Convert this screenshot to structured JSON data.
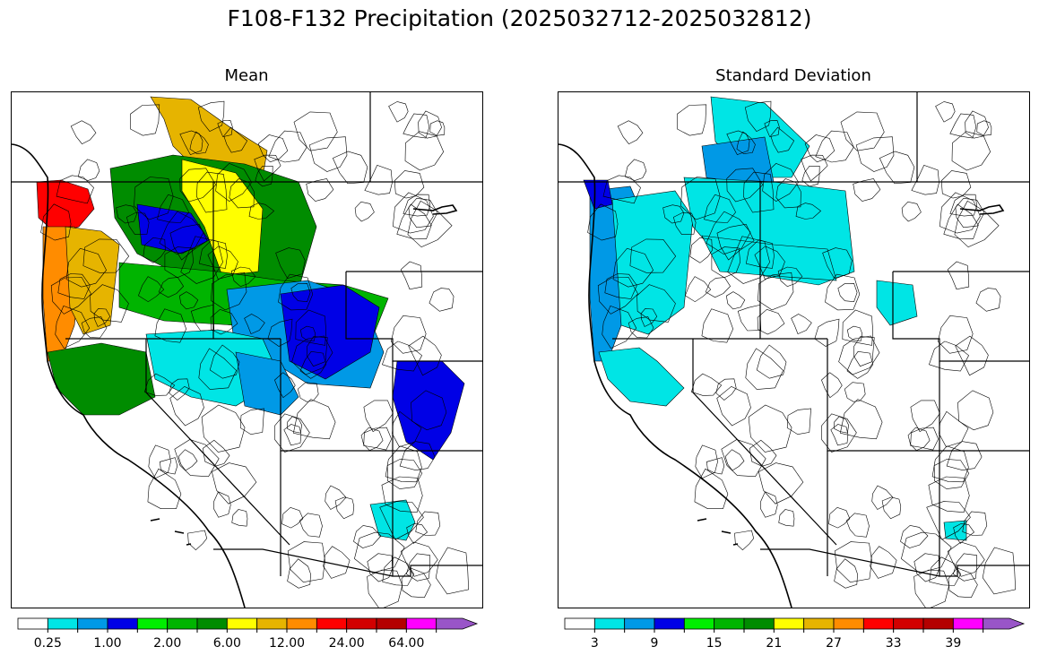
{
  "title": "F108-F132 Precipitation (2025032712-2025032812)",
  "panels": [
    {
      "title": "Mean",
      "colorbar": {
        "colors": [
          "#ffffff",
          "#00e5e5",
          "#0099e6",
          "#0000e6",
          "#00ee00",
          "#00b400",
          "#008c00",
          "#ffff00",
          "#e6b400",
          "#ff8c00",
          "#ff0000",
          "#d20000",
          "#b40000",
          "#ff00ff",
          "#9955c8"
        ],
        "extend": "max",
        "tick_labels": [
          "0.25",
          "1.00",
          "2.00",
          "6.00",
          "12.00",
          "24.00",
          "64.00"
        ],
        "tick_bins": [
          1,
          3,
          5,
          7,
          9,
          11,
          13
        ]
      },
      "regions": [
        {
          "name": "puget-olympic",
          "color": "#ff0000"
        },
        {
          "name": "oregon-coast",
          "color": "#ff8c00"
        },
        {
          "name": "willamette",
          "color": "#e6b400"
        },
        {
          "name": "bc-interior",
          "color": "#e6b400"
        },
        {
          "name": "columbia-north",
          "color": "#008c00"
        },
        {
          "name": "idaho-panhandle",
          "color": "#ffff00"
        },
        {
          "name": "snake-plain",
          "color": "#00b400"
        },
        {
          "name": "central-idaho",
          "color": "#0000e6"
        },
        {
          "name": "wyoming",
          "color": "#0099e6"
        },
        {
          "name": "northern-ca",
          "color": "#008c00"
        },
        {
          "name": "great-basin-north",
          "color": "#00e5e5"
        },
        {
          "name": "colorado-basins",
          "color": "#0000e6"
        },
        {
          "name": "utah-north",
          "color": "#0099e6"
        },
        {
          "name": "new-mexico-east",
          "color": "#0000e6"
        },
        {
          "name": "arizona-east",
          "color": "#00e5e5"
        }
      ]
    },
    {
      "title": "Standard Deviation",
      "colorbar": {
        "colors": [
          "#ffffff",
          "#00e5e5",
          "#0099e6",
          "#0000e6",
          "#00ee00",
          "#00b400",
          "#008c00",
          "#ffff00",
          "#e6b400",
          "#ff8c00",
          "#ff0000",
          "#d20000",
          "#b40000",
          "#ff00ff",
          "#9955c8"
        ],
        "extend": "max",
        "tick_labels": [
          "3",
          "9",
          "15",
          "21",
          "27",
          "33",
          "39"
        ],
        "tick_bins": [
          1,
          3,
          5,
          7,
          9,
          11,
          13
        ]
      },
      "regions": [
        {
          "name": "pacific-nw-coast",
          "color": "#0099e6"
        },
        {
          "name": "olympic-core",
          "color": "#0000e6"
        },
        {
          "name": "cascades",
          "color": "#00e5e5"
        },
        {
          "name": "bc-interior",
          "color": "#00e5e5"
        },
        {
          "name": "bc-core",
          "color": "#0099e6"
        },
        {
          "name": "columbia-north",
          "color": "#00e5e5"
        },
        {
          "name": "idaho-band",
          "color": "#00e5e5"
        },
        {
          "name": "northern-ca",
          "color": "#00e5e5"
        },
        {
          "name": "colorado-spot",
          "color": "#00e5e5"
        },
        {
          "name": "arizona-spot",
          "color": "#00e5e5"
        }
      ]
    }
  ]
}
